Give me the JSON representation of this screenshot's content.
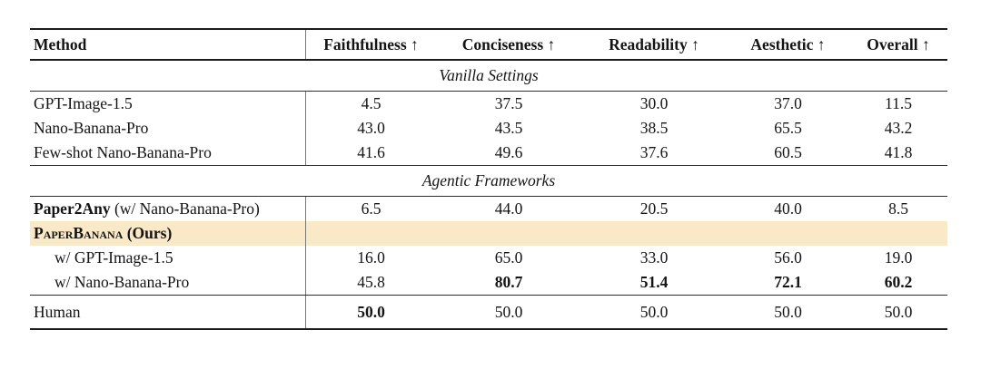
{
  "table": {
    "highlight_color": "#FAE9C6",
    "header": {
      "cells": [
        "Method",
        "Faithfulness ↑",
        "Conciseness ↑",
        "Readability ↑",
        "Aesthetic ↑",
        "Overall ↑"
      ]
    },
    "sections": [
      {
        "label": "Vanilla Settings"
      },
      {
        "label": "Agentic Frameworks"
      }
    ],
    "group1": [
      {
        "method": "GPT-Image-1.5",
        "values": [
          "4.5",
          "37.5",
          "30.0",
          "37.0",
          "11.5"
        ]
      },
      {
        "method": "Nano-Banana-Pro",
        "values": [
          "43.0",
          "43.5",
          "38.5",
          "65.5",
          "43.2"
        ]
      },
      {
        "method": "Few-shot Nano-Banana-Pro",
        "values": [
          "41.6",
          "49.6",
          "37.6",
          "60.5",
          "41.8"
        ]
      }
    ],
    "group2": [
      {
        "method_bold": "Paper2Any",
        "method_rest": " (w/ Nano-Banana-Pro)",
        "values": [
          "6.5",
          "44.0",
          "20.5",
          "40.0",
          "8.5"
        ]
      },
      {
        "method_smallcaps": "PaperBanana",
        "method_rest": " (Ours)"
      },
      {
        "method": "w/ GPT-Image-1.5",
        "values": [
          "16.0",
          "65.0",
          "33.0",
          "56.0",
          "19.0"
        ]
      },
      {
        "method": "w/ Nano-Banana-Pro",
        "values": [
          "45.8",
          "80.7",
          "51.4",
          "72.1",
          "60.2"
        ]
      }
    ],
    "human": {
      "method": "Human",
      "values": [
        "50.0",
        "50.0",
        "50.0",
        "50.0",
        "50.0"
      ]
    }
  }
}
